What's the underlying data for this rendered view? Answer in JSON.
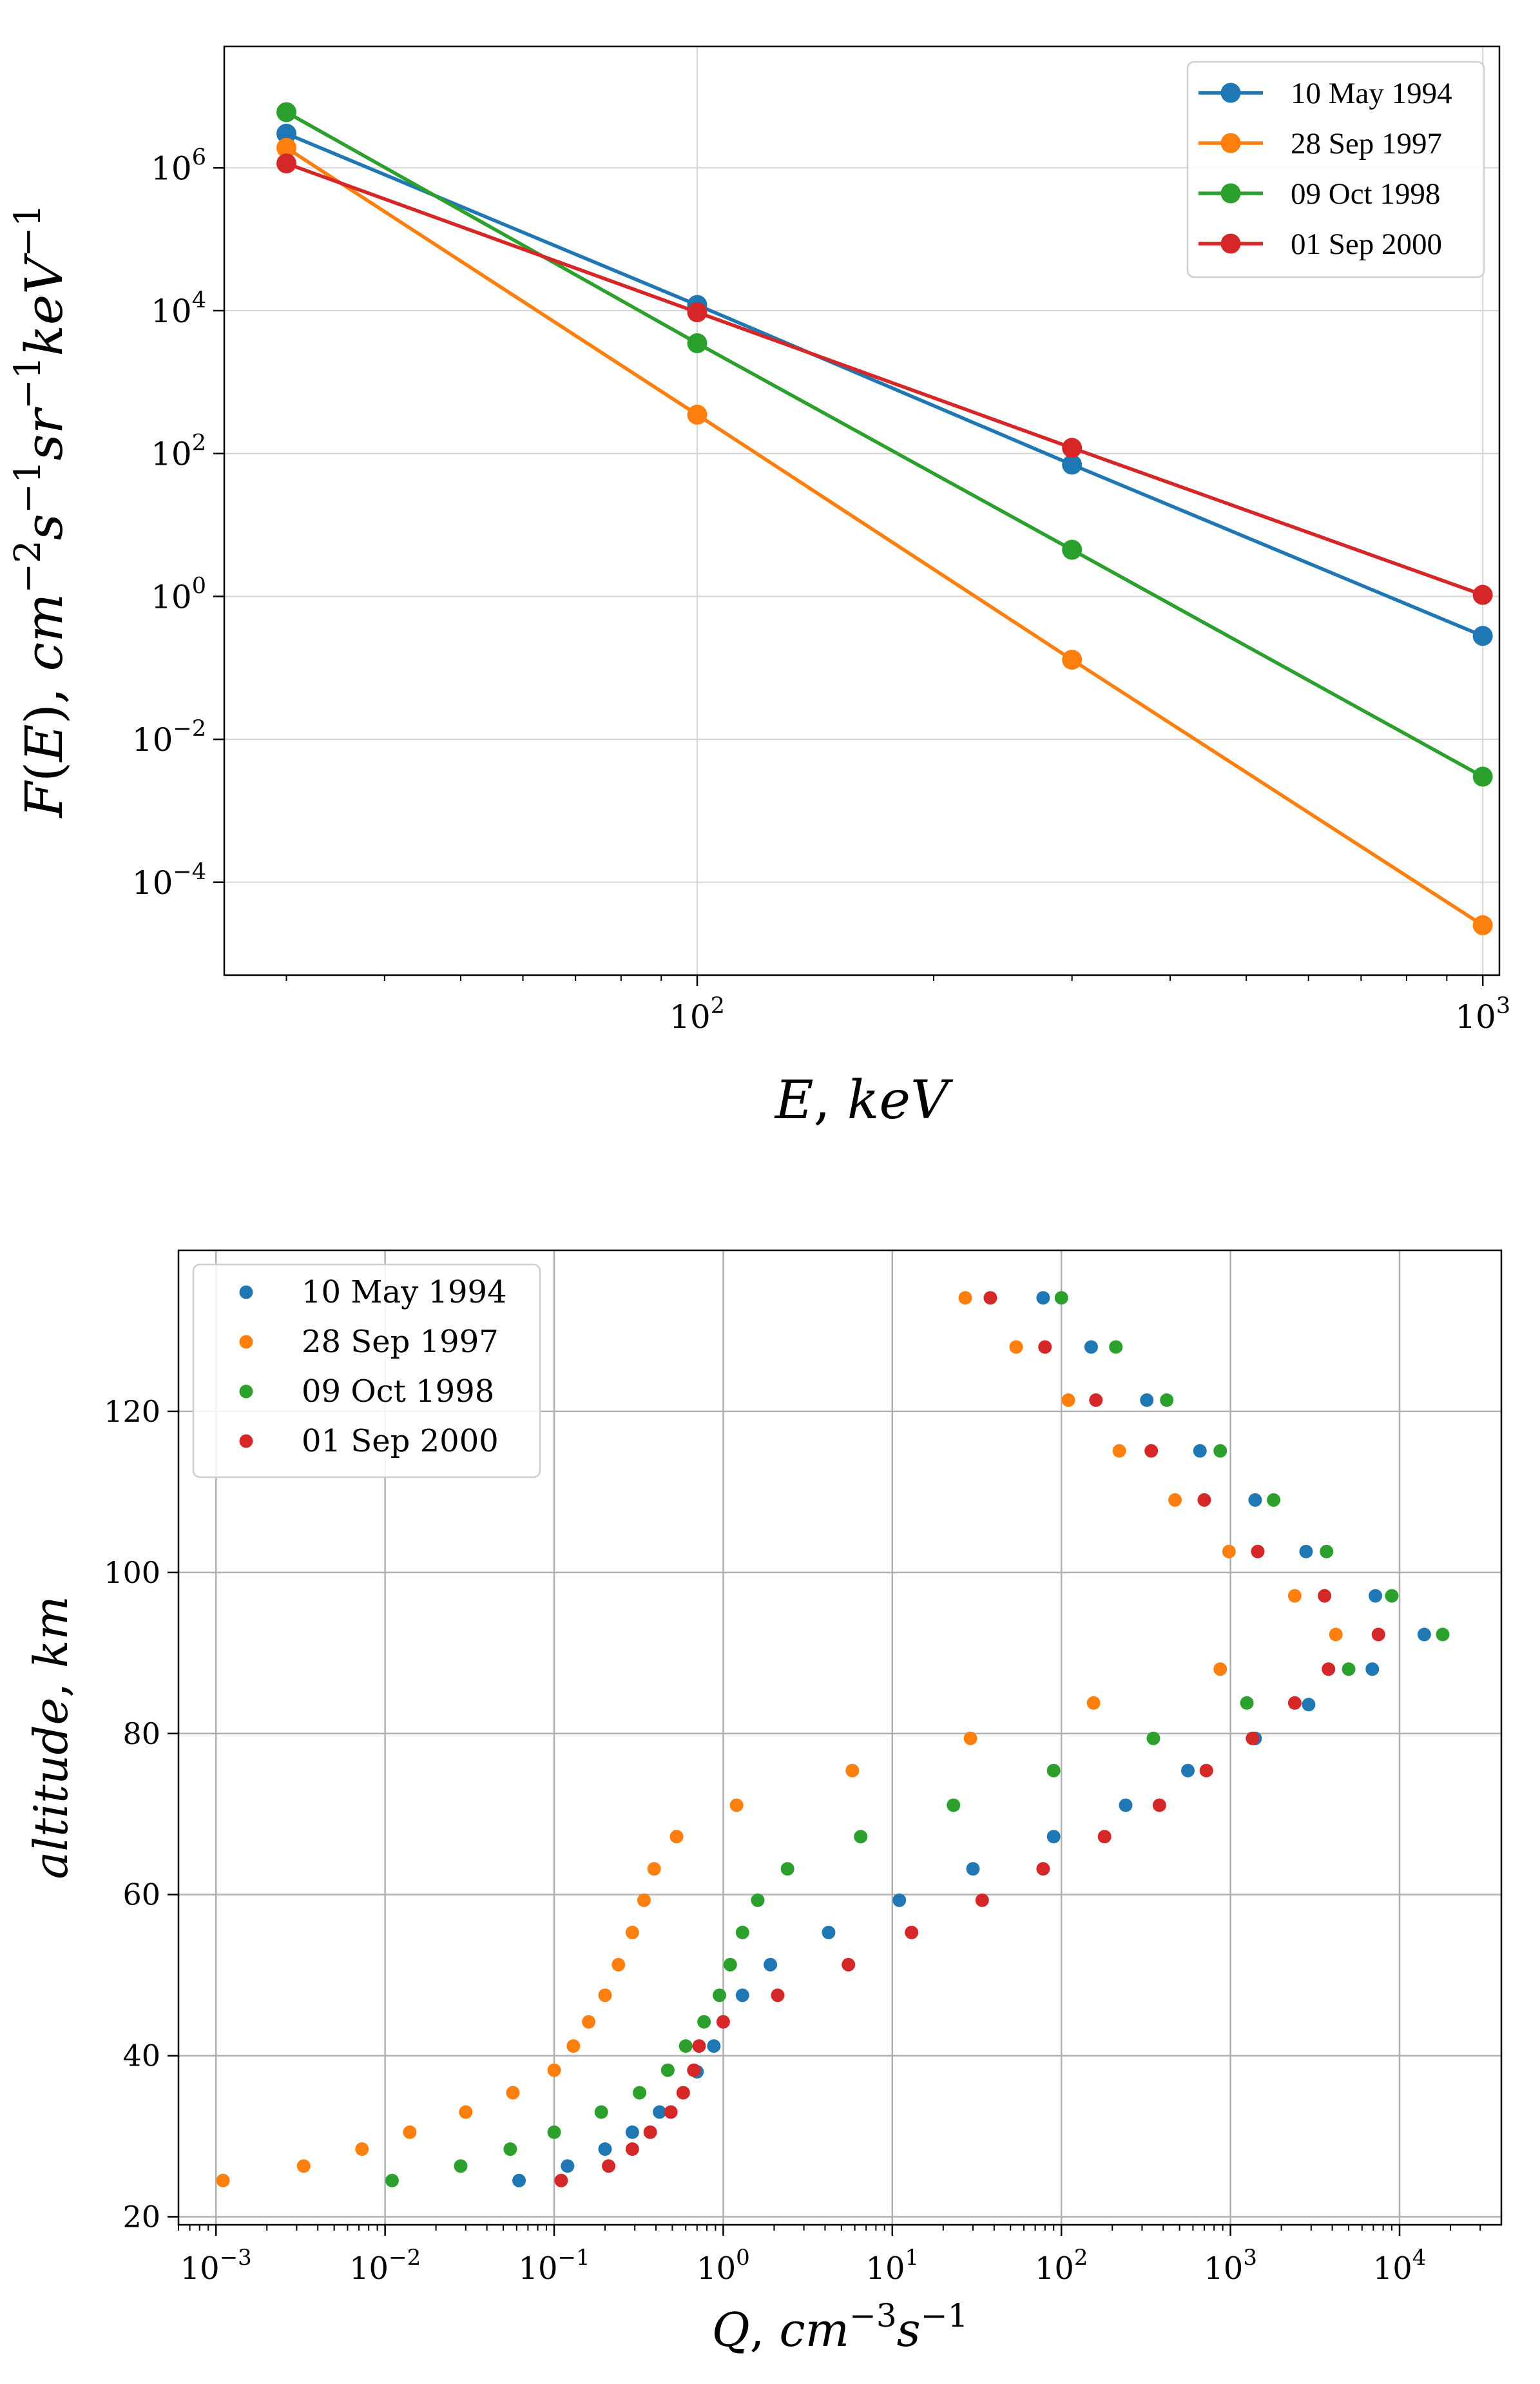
{
  "chart_data": [
    {
      "type": "line",
      "xscale": "log",
      "yscale": "log",
      "xlabel": "E, keV",
      "ylabel": "F(E), cm^-2 s^-1 sr^-1 keV^-1",
      "xlim": [
        25,
        1050
      ],
      "ylim": [
        5e-06,
        50000000
      ],
      "x_ticks": [
        {
          "value": 100,
          "base": "10",
          "exp": "2"
        },
        {
          "value": 1000,
          "base": "10",
          "exp": "3"
        }
      ],
      "y_ticks": [
        {
          "value": 0.0001,
          "base": "10",
          "exp": "−4"
        },
        {
          "value": 0.01,
          "base": "10",
          "exp": "−2"
        },
        {
          "value": 1,
          "base": "10",
          "exp": "0"
        },
        {
          "value": 100,
          "base": "10",
          "exp": "2"
        },
        {
          "value": 10000,
          "base": "10",
          "exp": "4"
        },
        {
          "value": 1000000,
          "base": "10",
          "exp": "6"
        }
      ],
      "grid": true,
      "legend_position": "top-right",
      "series": [
        {
          "name": "10 May 1994",
          "color": "#1f77b4",
          "x": [
            30,
            100,
            300,
            1000
          ],
          "y": [
            3000000,
            12000,
            70,
            0.28
          ]
        },
        {
          "name": "28 Sep 1997",
          "color": "#ff7f0e",
          "x": [
            30,
            100,
            300,
            1000
          ],
          "y": [
            1900000,
            350,
            0.13,
            2.5e-05
          ]
        },
        {
          "name": "09 Oct 1998",
          "color": "#2ca02c",
          "x": [
            30,
            100,
            300,
            1000
          ],
          "y": [
            6000000,
            3500,
            4.5,
            0.003
          ]
        },
        {
          "name": "01 Sep 2000",
          "color": "#d62728",
          "x": [
            30,
            100,
            300,
            1000
          ],
          "y": [
            1150000,
            9500,
            120,
            1.05
          ]
        }
      ]
    },
    {
      "type": "scatter",
      "xscale": "log",
      "yscale": "linear",
      "xlabel": "Q, cm^-3 s^-1",
      "ylabel": "altitude, km",
      "xlim": [
        0.0006,
        40000
      ],
      "ylim": [
        19,
        140
      ],
      "x_ticks": [
        {
          "value": 0.001,
          "base": "10",
          "exp": "−3"
        },
        {
          "value": 0.01,
          "base": "10",
          "exp": "−2"
        },
        {
          "value": 0.1,
          "base": "10",
          "exp": "−1"
        },
        {
          "value": 1,
          "base": "10",
          "exp": "0"
        },
        {
          "value": 10,
          "base": "10",
          "exp": "1"
        },
        {
          "value": 100,
          "base": "10",
          "exp": "2"
        },
        {
          "value": 1000,
          "base": "10",
          "exp": "3"
        },
        {
          "value": 10000,
          "base": "10",
          "exp": "4"
        }
      ],
      "y_ticks": [
        {
          "value": 20,
          "label": "20"
        },
        {
          "value": 40,
          "label": "40"
        },
        {
          "value": 60,
          "label": "60"
        },
        {
          "value": 80,
          "label": "80"
        },
        {
          "value": 100,
          "label": "100"
        },
        {
          "value": 120,
          "label": "120"
        }
      ],
      "grid": true,
      "legend_position": "top-left",
      "series": [
        {
          "name": "10 May 1994",
          "color": "#1f77b4",
          "points": [
            [
              0.062,
              24.5
            ],
            [
              0.12,
              26.3
            ],
            [
              0.2,
              28.4
            ],
            [
              0.29,
              30.5
            ],
            [
              0.42,
              33
            ],
            [
              0.7,
              38
            ],
            [
              0.88,
              41.2
            ],
            [
              1.3,
              47.5
            ],
            [
              1.9,
              51.3
            ],
            [
              4.2,
              55.3
            ],
            [
              11,
              59.3
            ],
            [
              30,
              63.2
            ],
            [
              90,
              67.2
            ],
            [
              240,
              71.1
            ],
            [
              560,
              75.4
            ],
            [
              1400,
              79.4
            ],
            [
              2900,
              83.6
            ],
            [
              6900,
              88
            ],
            [
              14000,
              92.3
            ],
            [
              7200,
              97.1
            ],
            [
              2800,
              102.6
            ],
            [
              1400,
              109
            ],
            [
              660,
              115.1
            ],
            [
              320,
              121.4
            ],
            [
              150,
              128
            ],
            [
              78,
              134.1
            ]
          ]
        },
        {
          "name": "28 Sep 1997",
          "color": "#ff7f0e",
          "points": [
            [
              0.0011,
              24.5
            ],
            [
              0.0033,
              26.3
            ],
            [
              0.0073,
              28.4
            ],
            [
              0.014,
              30.5
            ],
            [
              0.03,
              33
            ],
            [
              0.057,
              35.4
            ],
            [
              0.1,
              38.2
            ],
            [
              0.13,
              41.2
            ],
            [
              0.16,
              44.2
            ],
            [
              0.2,
              47.5
            ],
            [
              0.24,
              51.3
            ],
            [
              0.29,
              55.3
            ],
            [
              0.34,
              59.3
            ],
            [
              0.39,
              63.2
            ],
            [
              0.53,
              67.2
            ],
            [
              1.2,
              71.1
            ],
            [
              5.8,
              75.4
            ],
            [
              29,
              79.4
            ],
            [
              155,
              83.8
            ],
            [
              870,
              88
            ],
            [
              4200,
              92.3
            ],
            [
              2400,
              97.1
            ],
            [
              980,
              102.6
            ],
            [
              470,
              109
            ],
            [
              220,
              115.1
            ],
            [
              110,
              121.4
            ],
            [
              54,
              128
            ],
            [
              27,
              134.1
            ]
          ]
        },
        {
          "name": "09 Oct 1998",
          "color": "#2ca02c",
          "points": [
            [
              0.011,
              24.5
            ],
            [
              0.028,
              26.3
            ],
            [
              0.055,
              28.4
            ],
            [
              0.1,
              30.5
            ],
            [
              0.19,
              33
            ],
            [
              0.32,
              35.4
            ],
            [
              0.47,
              38.2
            ],
            [
              0.6,
              41.2
            ],
            [
              0.77,
              44.2
            ],
            [
              0.95,
              47.5
            ],
            [
              1.1,
              51.3
            ],
            [
              1.3,
              55.3
            ],
            [
              1.6,
              59.3
            ],
            [
              2.4,
              63.2
            ],
            [
              6.5,
              67.2
            ],
            [
              23,
              71.1
            ],
            [
              90,
              75.4
            ],
            [
              350,
              79.4
            ],
            [
              1250,
              83.8
            ],
            [
              5000,
              88
            ],
            [
              18000,
              92.3
            ],
            [
              9000,
              97.1
            ],
            [
              3700,
              102.6
            ],
            [
              1800,
              109
            ],
            [
              870,
              115.1
            ],
            [
              420,
              121.4
            ],
            [
              210,
              128
            ],
            [
              100,
              134.1
            ]
          ]
        },
        {
          "name": "01 Sep 2000",
          "color": "#d62728",
          "points": [
            [
              0.11,
              24.5
            ],
            [
              0.21,
              26.3
            ],
            [
              0.29,
              28.4
            ],
            [
              0.37,
              30.5
            ],
            [
              0.49,
              33
            ],
            [
              0.58,
              35.4
            ],
            [
              0.67,
              38.2
            ],
            [
              0.72,
              41.2
            ],
            [
              1.0,
              44.2
            ],
            [
              2.1,
              47.5
            ],
            [
              5.5,
              51.3
            ],
            [
              13,
              55.3
            ],
            [
              34,
              59.3
            ],
            [
              78,
              63.2
            ],
            [
              180,
              67.2
            ],
            [
              380,
              71.1
            ],
            [
              720,
              75.4
            ],
            [
              1350,
              79.4
            ],
            [
              2400,
              83.8
            ],
            [
              3800,
              88
            ],
            [
              7500,
              92.3
            ],
            [
              3600,
              97.1
            ],
            [
              1450,
              102.6
            ],
            [
              700,
              109
            ],
            [
              340,
              115.1
            ],
            [
              160,
              121.4
            ],
            [
              80,
              128
            ],
            [
              38,
              134.1
            ]
          ]
        }
      ]
    }
  ]
}
